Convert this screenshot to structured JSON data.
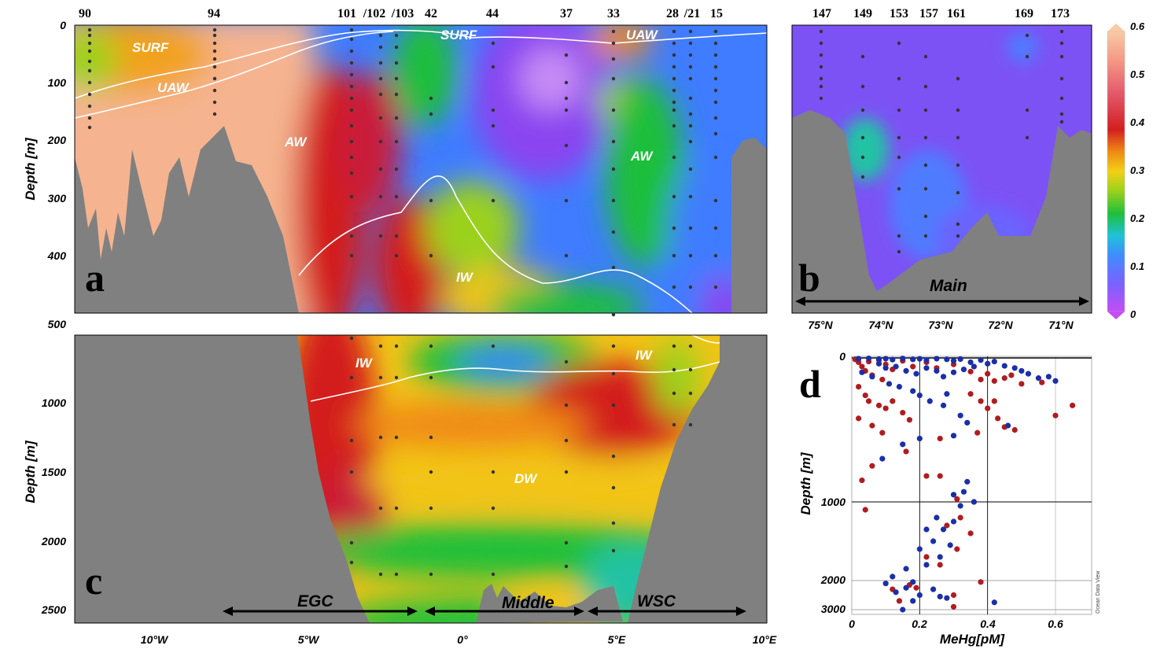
{
  "chart_data": [
    {
      "panel": "a",
      "type": "heatmap",
      "variable": "MeHg [pM]",
      "x_axis": "longitude",
      "ylabel": "Depth [m]",
      "ylim": [
        500,
        0
      ],
      "yticks": [
        "0",
        "100",
        "200",
        "300",
        "400",
        "500"
      ],
      "stations": [
        "90",
        "94",
        "101",
        "/102",
        "/103",
        "42",
        "44",
        "37",
        "33",
        "28",
        "/21",
        "15"
      ],
      "water_masses": [
        "SURF",
        "UAW",
        "AW",
        "SURF",
        "UAW",
        "AW",
        "IW"
      ],
      "high_values": "0.5–0.6 pM at 12°W–4°W, 0–250 m",
      "low_values": "0.02–0.08 pM at 1°E–4°E, 50–250 m"
    },
    {
      "panel": "b",
      "type": "heatmap",
      "variable": "MeHg [pM]",
      "x_axis": "latitude",
      "xticks": [
        "75°N",
        "74°N",
        "73°N",
        "72°N",
        "71°N"
      ],
      "stations": [
        "147",
        "149",
        "153",
        "157",
        "161",
        "169",
        "173"
      ],
      "region": "Main",
      "range_note": "mostly 0.02–0.12 pM"
    },
    {
      "panel": "c",
      "type": "heatmap",
      "variable": "MeHg [pM]",
      "x_axis": "longitude",
      "xticks": [
        "10°W",
        "5°W",
        "0°",
        "5°E",
        "10°E"
      ],
      "ylabel": "Depth [m]",
      "ylim": [
        2600,
        500
      ],
      "yticks": [
        "1000",
        "1500",
        "2000",
        "2500"
      ],
      "water_masses": [
        "IW",
        "IW",
        "DW"
      ],
      "regions": [
        "EGC",
        "Middle",
        "WSC"
      ]
    },
    {
      "panel": "d",
      "type": "scatter",
      "xlabel": "MeHg[pM]",
      "ylabel": "Depth [m]",
      "xlim": [
        0,
        0.7
      ],
      "xticks": [
        "0",
        "0.2",
        "0.4",
        "0.6"
      ],
      "yticks": [
        "0",
        "1000",
        "2000",
        "3000"
      ],
      "watermark": "Ocean Data View",
      "series": [
        {
          "color": "#b01c20",
          "points": [
            [
              0.01,
              10
            ],
            [
              0.02,
              30
            ],
            [
              0.03,
              60
            ],
            [
              0.04,
              90
            ],
            [
              0.05,
              25
            ],
            [
              0.06,
              120
            ],
            [
              0.08,
              15
            ],
            [
              0.09,
              150
            ],
            [
              0.1,
              45
            ],
            [
              0.12,
              80
            ],
            [
              0.15,
              20
            ],
            [
              0.18,
              60
            ],
            [
              0.22,
              30
            ],
            [
              0.25,
              70
            ],
            [
              0.3,
              45
            ],
            [
              0.35,
              95
            ],
            [
              0.38,
              150
            ],
            [
              0.4,
              110
            ],
            [
              0.42,
              160
            ],
            [
              0.45,
              140
            ],
            [
              0.47,
              120
            ],
            [
              0.5,
              180
            ],
            [
              0.56,
              170
            ],
            [
              0.6,
              400
            ],
            [
              0.65,
              330
            ],
            [
              0.02,
              200
            ],
            [
              0.04,
              260
            ],
            [
              0.05,
              300
            ],
            [
              0.08,
              330
            ],
            [
              0.1,
              350
            ],
            [
              0.12,
              300
            ],
            [
              0.15,
              380
            ],
            [
              0.17,
              430
            ],
            [
              0.02,
              420
            ],
            [
              0.06,
              470
            ],
            [
              0.09,
              520
            ],
            [
              0.35,
              250
            ],
            [
              0.38,
              300
            ],
            [
              0.4,
              350
            ],
            [
              0.43,
              420
            ],
            [
              0.45,
              480
            ],
            [
              0.48,
              500
            ],
            [
              0.37,
              520
            ],
            [
              0.42,
              300
            ],
            [
              0.26,
              560
            ],
            [
              0.16,
              650
            ],
            [
              0.06,
              750
            ],
            [
              0.03,
              850
            ],
            [
              0.22,
              820
            ],
            [
              0.26,
              820
            ],
            [
              0.31,
              980
            ],
            [
              0.36,
              1000
            ],
            [
              0.04,
              1100
            ],
            [
              0.32,
              1200
            ],
            [
              0.28,
              1300
            ],
            [
              0.35,
              1400
            ],
            [
              0.31,
              1600
            ],
            [
              0.22,
              1700
            ],
            [
              0.26,
              1800
            ],
            [
              0.38,
              2050
            ],
            [
              0.17,
              2150
            ],
            [
              0.19,
              2250
            ],
            [
              0.3,
              2500
            ],
            [
              0.12,
              2300
            ],
            [
              0.14,
              2700
            ],
            [
              0.3,
              2900
            ]
          ]
        },
        {
          "color": "#1a2fa8",
          "points": [
            [
              0.02,
              5
            ],
            [
              0.05,
              3
            ],
            [
              0.08,
              8
            ],
            [
              0.1,
              5
            ],
            [
              0.12,
              12
            ],
            [
              0.15,
              4
            ],
            [
              0.18,
              10
            ],
            [
              0.2,
              6
            ],
            [
              0.22,
              15
            ],
            [
              0.25,
              5
            ],
            [
              0.28,
              10
            ],
            [
              0.3,
              20
            ],
            [
              0.32,
              8
            ],
            [
              0.35,
              30
            ],
            [
              0.38,
              15
            ],
            [
              0.4,
              40
            ],
            [
              0.42,
              25
            ],
            [
              0.45,
              55
            ],
            [
              0.48,
              70
            ],
            [
              0.5,
              90
            ],
            [
              0.52,
              110
            ],
            [
              0.55,
              140
            ],
            [
              0.58,
              130
            ],
            [
              0.6,
              160
            ],
            [
              0.08,
              40
            ],
            [
              0.1,
              70
            ],
            [
              0.13,
              60
            ],
            [
              0.16,
              90
            ],
            [
              0.19,
              110
            ],
            [
              0.22,
              70
            ],
            [
              0.25,
              90
            ],
            [
              0.27,
              130
            ],
            [
              0.3,
              100
            ],
            [
              0.33,
              80
            ],
            [
              0.36,
              60
            ],
            [
              0.03,
              100
            ],
            [
              0.06,
              130
            ],
            [
              0.11,
              180
            ],
            [
              0.14,
              200
            ],
            [
              0.18,
              230
            ],
            [
              0.2,
              260
            ],
            [
              0.23,
              300
            ],
            [
              0.27,
              330
            ],
            [
              0.32,
              400
            ],
            [
              0.34,
              450
            ],
            [
              0.46,
              470
            ],
            [
              0.28,
              250
            ],
            [
              0.3,
              540
            ],
            [
              0.2,
              560
            ],
            [
              0.15,
              600
            ],
            [
              0.09,
              700
            ],
            [
              0.34,
              860
            ],
            [
              0.33,
              930
            ],
            [
              0.3,
              950
            ],
            [
              0.36,
              1000
            ],
            [
              0.32,
              1050
            ],
            [
              0.25,
              1200
            ],
            [
              0.3,
              1250
            ],
            [
              0.22,
              1350
            ],
            [
              0.27,
              1350
            ],
            [
              0.24,
              1500
            ],
            [
              0.29,
              1550
            ],
            [
              0.2,
              1600
            ],
            [
              0.26,
              1700
            ],
            [
              0.22,
              1800
            ],
            [
              0.16,
              1850
            ],
            [
              0.12,
              1950
            ],
            [
              0.18,
              2050
            ],
            [
              0.1,
              2100
            ],
            [
              0.16,
              2250
            ],
            [
              0.24,
              2300
            ],
            [
              0.13,
              2400
            ],
            [
              0.2,
              2500
            ],
            [
              0.26,
              2550
            ],
            [
              0.18,
              2700
            ],
            [
              0.42,
              2750
            ],
            [
              0.15,
              3000
            ],
            [
              0.28,
              2600
            ]
          ]
        }
      ]
    }
  ],
  "labels": {
    "station_numbers_top": [
      "90",
      "94",
      "101",
      "/102",
      "/103",
      "42",
      "44",
      "37",
      "33",
      "28",
      "/21",
      "15"
    ],
    "station_numbers_right": [
      "147",
      "149",
      "153",
      "157",
      "161",
      "169",
      "173"
    ],
    "panel_letters": [
      "a",
      "b",
      "c",
      "d"
    ],
    "depth_label": "Depth [m]",
    "ticks_a": [
      "0",
      "100",
      "200",
      "300",
      "400"
    ],
    "ticks_c": [
      "500",
      "1000",
      "1500",
      "2000",
      "2500"
    ],
    "ticks_x_lon": [
      "10°W",
      "5°W",
      "0°",
      "5°E",
      "10°E"
    ],
    "ticks_x_lat": [
      "75°N",
      "74°N",
      "73°N",
      "72°N",
      "71°N"
    ],
    "colorbar_ticks": [
      "0.6",
      "0.5",
      "0.4",
      "0.3",
      "0.2",
      "0.1",
      "0"
    ],
    "wm_a": [
      "SURF",
      "UAW",
      "AW",
      "SURF",
      "UAW",
      "AW",
      "IW"
    ],
    "wm_c": [
      "IW",
      "IW",
      "DW"
    ],
    "regions_c": [
      "EGC",
      "Middle",
      "WSC"
    ],
    "region_b": "Main",
    "d_xticks": [
      "0",
      "0.2",
      "0.4",
      "0.6"
    ],
    "d_yticks": [
      "0",
      "1000",
      "2000",
      "3000"
    ],
    "d_xlabel": "MeHg[pM]",
    "d_ylabel": "Depth [m]",
    "d_watermark": "Ocean Data View"
  },
  "colors": {
    "bathymetry": "#808080",
    "series_1": "#b01c20",
    "series_2": "#1a2fa8",
    "colorbar": [
      "#8a35f2",
      "#4f7cff",
      "#22b7e0",
      "#23c259",
      "#9bd11d",
      "#f2c416",
      "#f08a14",
      "#d31f1f",
      "#e85a6b",
      "#f5b48f"
    ]
  }
}
